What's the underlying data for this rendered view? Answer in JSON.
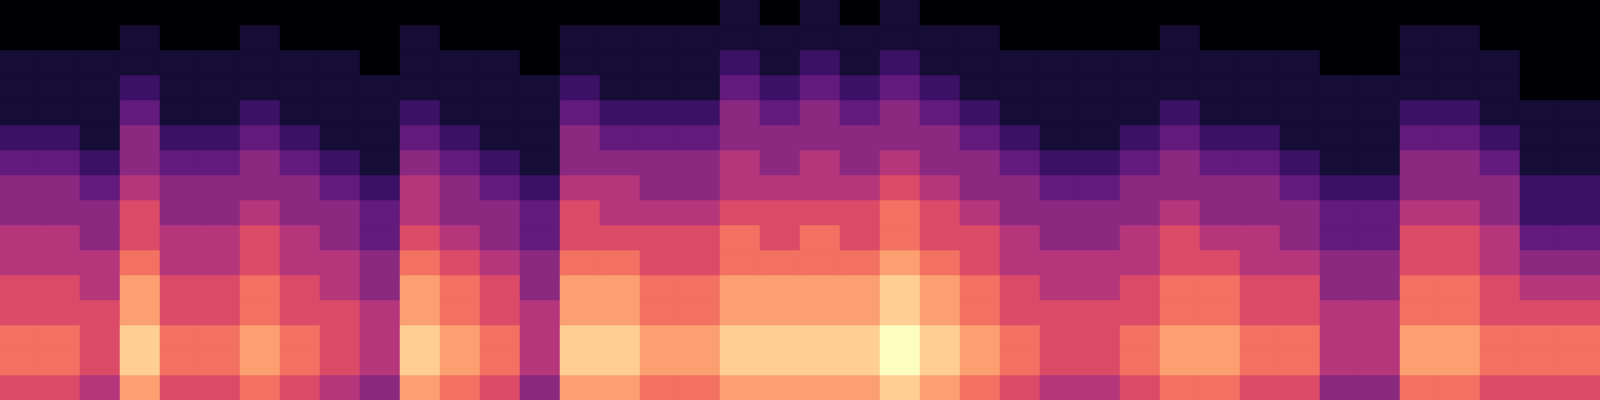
{
  "chart_data": {
    "type": "heatmap",
    "zlim": [
      0,
      10
    ],
    "tick_labels": false,
    "grid": false,
    "cells": [
      [
        6,
        6,
        5,
        8,
        6,
        6,
        7,
        6,
        5,
        4,
        8,
        7,
        6,
        4,
        8,
        8,
        7,
        7,
        8,
        8,
        8,
        8,
        9,
        8,
        7,
        6,
        5,
        5,
        6,
        7,
        7,
        6,
        6,
        4,
        4,
        7,
        7,
        6,
        6,
        6
      ],
      [
        7,
        7,
        6,
        9,
        7,
        7,
        8,
        7,
        6,
        5,
        9,
        8,
        7,
        5,
        9,
        9,
        8,
        8,
        9,
        9,
        9,
        9,
        10,
        9,
        8,
        7,
        6,
        6,
        7,
        8,
        8,
        7,
        7,
        5,
        5,
        8,
        8,
        7,
        7,
        7
      ],
      [
        7,
        7,
        6,
        9,
        7,
        7,
        8,
        7,
        6,
        5,
        9,
        8,
        7,
        5,
        9,
        9,
        8,
        8,
        9,
        9,
        9,
        9,
        10,
        9,
        8,
        7,
        6,
        6,
        7,
        8,
        8,
        7,
        7,
        5,
        5,
        8,
        8,
        7,
        7,
        7
      ],
      [
        6,
        6,
        6,
        8,
        6,
        6,
        7,
        6,
        6,
        5,
        8,
        7,
        6,
        5,
        8,
        8,
        7,
        7,
        8,
        8,
        8,
        8,
        9,
        8,
        7,
        6,
        6,
        6,
        6,
        7,
        7,
        6,
        6,
        5,
        5,
        7,
        7,
        6,
        6,
        6
      ],
      [
        6,
        6,
        5,
        8,
        6,
        6,
        7,
        6,
        5,
        4,
        8,
        7,
        6,
        4,
        8,
        8,
        7,
        7,
        8,
        8,
        8,
        8,
        9,
        8,
        7,
        6,
        5,
        5,
        6,
        7,
        7,
        6,
        6,
        4,
        4,
        7,
        7,
        6,
        5,
        5
      ],
      [
        5,
        5,
        5,
        7,
        5,
        5,
        6,
        5,
        5,
        4,
        7,
        6,
        5,
        4,
        7,
        7,
        6,
        6,
        7,
        7,
        7,
        7,
        8,
        7,
        6,
        5,
        5,
        5,
        5,
        6,
        6,
        5,
        5,
        4,
        4,
        6,
        6,
        5,
        4,
        4
      ],
      [
        5,
        5,
        4,
        6,
        5,
        5,
        6,
        5,
        4,
        3,
        6,
        5,
        4,
        3,
        6,
        6,
        6,
        6,
        7,
        6,
        7,
        6,
        7,
        6,
        6,
        5,
        4,
        4,
        5,
        6,
        5,
        5,
        4,
        3,
        3,
        6,
        6,
        5,
        3,
        3
      ],
      [
        4,
        4,
        4,
        6,
        4,
        4,
        5,
        4,
        4,
        3,
        5,
        4,
        4,
        3,
        6,
        5,
        5,
        5,
        6,
        6,
        6,
        6,
        7,
        6,
        5,
        4,
        4,
        4,
        4,
        5,
        4,
        4,
        4,
        3,
        3,
        5,
        5,
        4,
        2,
        2
      ],
      [
        4,
        4,
        3,
        5,
        4,
        4,
        4,
        4,
        3,
        2,
        5,
        4,
        3,
        2,
        5,
        5,
        4,
        4,
        5,
        5,
        5,
        5,
        6,
        5,
        4,
        4,
        3,
        3,
        4,
        4,
        4,
        4,
        3,
        2,
        2,
        4,
        4,
        4,
        2,
        2
      ],
      [
        3,
        3,
        2,
        4,
        3,
        3,
        4,
        3,
        2,
        1,
        4,
        3,
        2,
        1,
        4,
        4,
        4,
        4,
        5,
        4,
        5,
        4,
        5,
        4,
        4,
        3,
        2,
        2,
        3,
        4,
        3,
        3,
        2,
        1,
        1,
        4,
        4,
        3,
        1,
        1
      ],
      [
        2,
        2,
        1,
        4,
        2,
        2,
        3,
        2,
        1,
        1,
        3,
        2,
        1,
        1,
        4,
        3,
        3,
        3,
        4,
        4,
        4,
        4,
        4,
        4,
        3,
        2,
        1,
        1,
        2,
        3,
        2,
        2,
        1,
        1,
        1,
        3,
        3,
        2,
        1,
        1
      ],
      [
        1,
        1,
        1,
        3,
        1,
        1,
        2,
        1,
        1,
        1,
        2,
        1,
        1,
        1,
        3,
        2,
        2,
        2,
        4,
        3,
        4,
        3,
        4,
        3,
        2,
        1,
        1,
        1,
        1,
        2,
        1,
        1,
        1,
        1,
        1,
        2,
        2,
        1,
        1,
        1
      ],
      [
        1,
        1,
        1,
        2,
        1,
        1,
        1,
        1,
        1,
        1,
        1,
        1,
        1,
        1,
        2,
        1,
        1,
        1,
        3,
        2,
        3,
        2,
        3,
        2,
        1,
        1,
        1,
        1,
        1,
        1,
        1,
        1,
        1,
        1,
        1,
        1,
        1,
        1,
        0,
        0
      ],
      [
        1,
        1,
        1,
        1,
        1,
        1,
        1,
        1,
        1,
        0,
        1,
        1,
        1,
        0,
        1,
        1,
        1,
        1,
        2,
        1,
        2,
        1,
        2,
        1,
        1,
        1,
        1,
        1,
        1,
        1,
        1,
        1,
        1,
        0,
        0,
        1,
        1,
        1,
        0,
        0
      ],
      [
        0,
        0,
        0,
        1,
        0,
        0,
        1,
        0,
        0,
        0,
        1,
        0,
        0,
        0,
        1,
        1,
        1,
        1,
        1,
        1,
        1,
        1,
        1,
        1,
        1,
        0,
        0,
        0,
        0,
        1,
        0,
        0,
        0,
        0,
        0,
        1,
        1,
        0,
        0,
        0
      ],
      [
        0,
        0,
        0,
        0,
        0,
        0,
        0,
        0,
        0,
        0,
        0,
        0,
        0,
        0,
        0,
        0,
        0,
        0,
        1,
        0,
        1,
        0,
        1,
        0,
        0,
        0,
        0,
        0,
        0,
        0,
        0,
        0,
        0,
        0,
        0,
        0,
        0,
        0,
        0,
        0
      ]
    ]
  }
}
